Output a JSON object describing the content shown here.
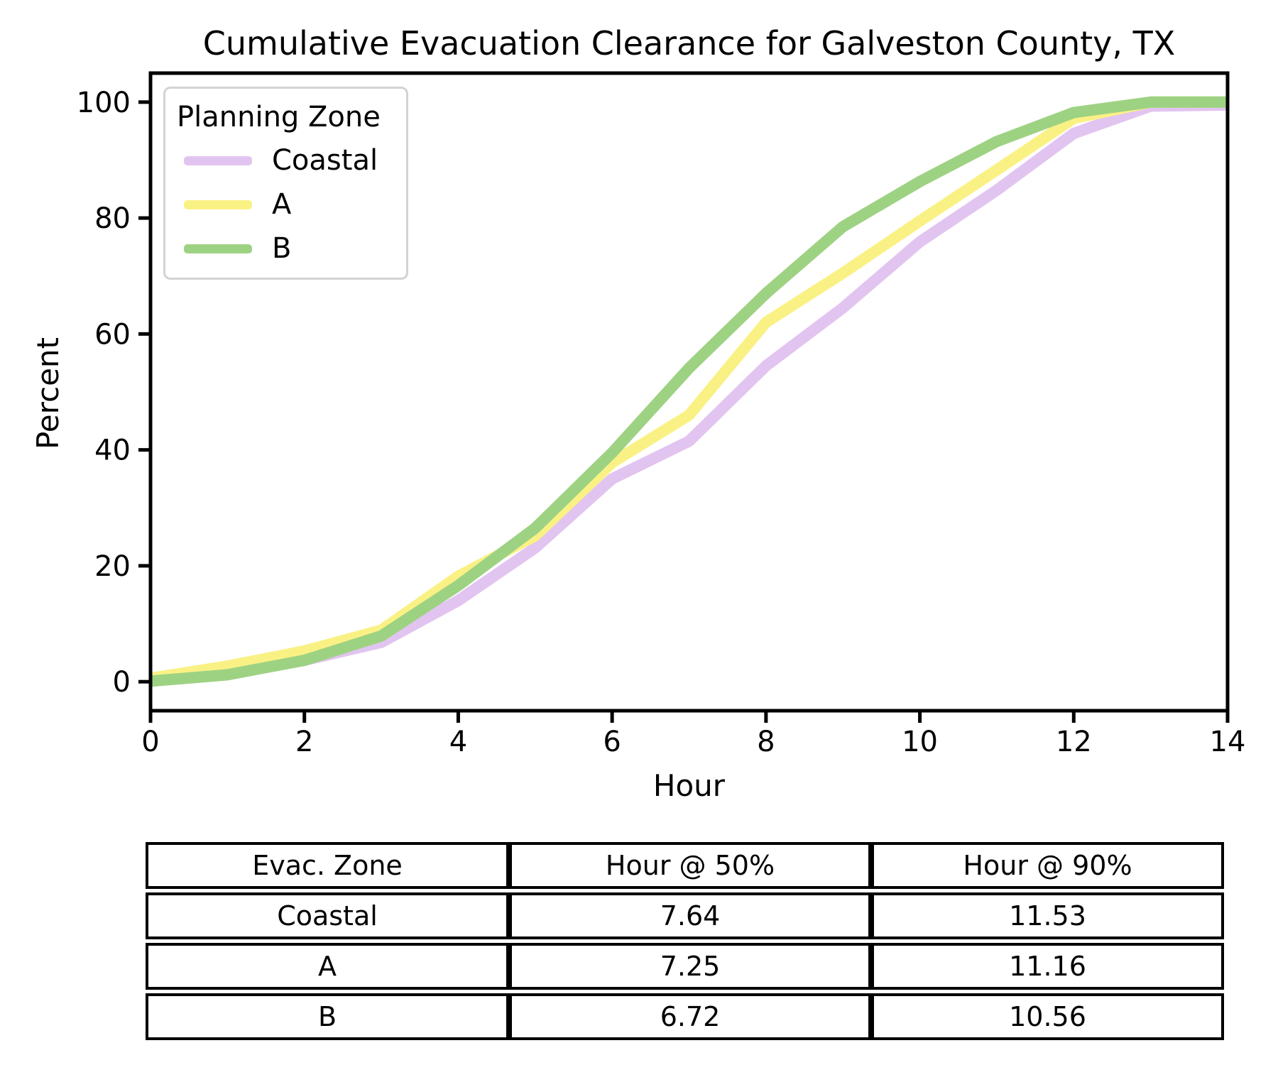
{
  "chart_data": {
    "type": "line",
    "title": "Cumulative Evacuation Clearance for Galveston County, TX",
    "xlabel": "Hour",
    "ylabel": "Percent",
    "xlim": [
      0,
      14
    ],
    "ylim": [
      -5,
      105
    ],
    "x_ticks": [
      0,
      2,
      4,
      6,
      8,
      10,
      12,
      14
    ],
    "y_ticks": [
      0,
      20,
      40,
      60,
      80,
      100
    ],
    "grid": false,
    "legend_title": "Planning Zone",
    "legend_position": "upper left",
    "x": [
      0,
      1,
      2,
      3,
      4,
      5,
      6,
      7,
      8,
      9,
      10,
      11,
      12,
      13,
      14
    ],
    "series": [
      {
        "name": "Coastal",
        "color": "#e2c4f0",
        "values": [
          0.2,
          1.5,
          3.7,
          6.8,
          14.0,
          23.1,
          35.0,
          41.5,
          54.5,
          64.5,
          75.9,
          84.8,
          94.6,
          99.3,
          99.5
        ]
      },
      {
        "name": "A",
        "color": "#faf185",
        "values": [
          0.6,
          2.7,
          5.3,
          8.9,
          18.2,
          25.2,
          37.8,
          46.0,
          62.0,
          70.5,
          79.5,
          88.3,
          97.2,
          100,
          100
        ]
      },
      {
        "name": "B",
        "color": "#9ed283",
        "values": [
          0.1,
          1.2,
          3.7,
          7.9,
          16.6,
          26.5,
          39.5,
          54.1,
          67.0,
          78.5,
          86.3,
          93.2,
          98.2,
          100,
          100
        ]
      }
    ]
  },
  "summary_table": {
    "headers": [
      "Evac. Zone",
      "Hour @ 50%",
      "Hour @ 90%"
    ],
    "rows": [
      [
        "Coastal",
        "7.64",
        "11.53"
      ],
      [
        "A",
        "7.25",
        "11.16"
      ],
      [
        "B",
        "6.72",
        "10.56"
      ]
    ]
  }
}
